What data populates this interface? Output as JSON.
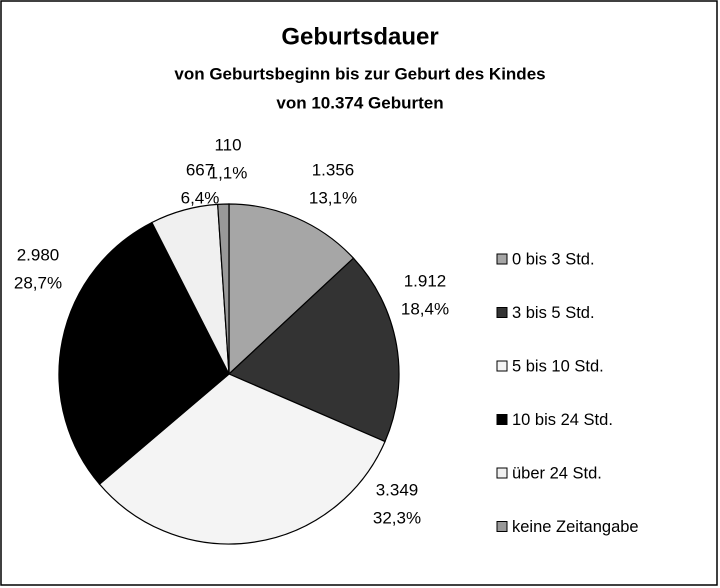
{
  "chart_data": {
    "type": "pie",
    "title": "Geburtsdauer",
    "subtitle": [
      "von Geburtsbeginn bis zur Geburt des Kindes",
      "von 10.374 Geburten"
    ],
    "categories": [
      "0 bis 3 Std.",
      "3 bis 5 Std.",
      "5 bis 10 Std.",
      "10 bis 24 Std.",
      "über 24 Std.",
      "keine Zeitangabe"
    ],
    "values": [
      1356,
      1912,
      3349,
      2980,
      667,
      110
    ],
    "value_labels": [
      "1.356",
      "1.912",
      "3.349",
      "2.980",
      "667",
      "110"
    ],
    "percents": [
      13.1,
      18.4,
      32.3,
      28.7,
      6.4,
      1.1
    ],
    "percent_labels": [
      "13,1%",
      "18,4%",
      "32,3%",
      "28,7%",
      "6,4%",
      "1,1%"
    ],
    "colors": [
      "#a6a6a6",
      "#333333",
      "#f4f4f4",
      "#000000",
      "#f0f0f0",
      "#999999"
    ],
    "legend": "right"
  }
}
